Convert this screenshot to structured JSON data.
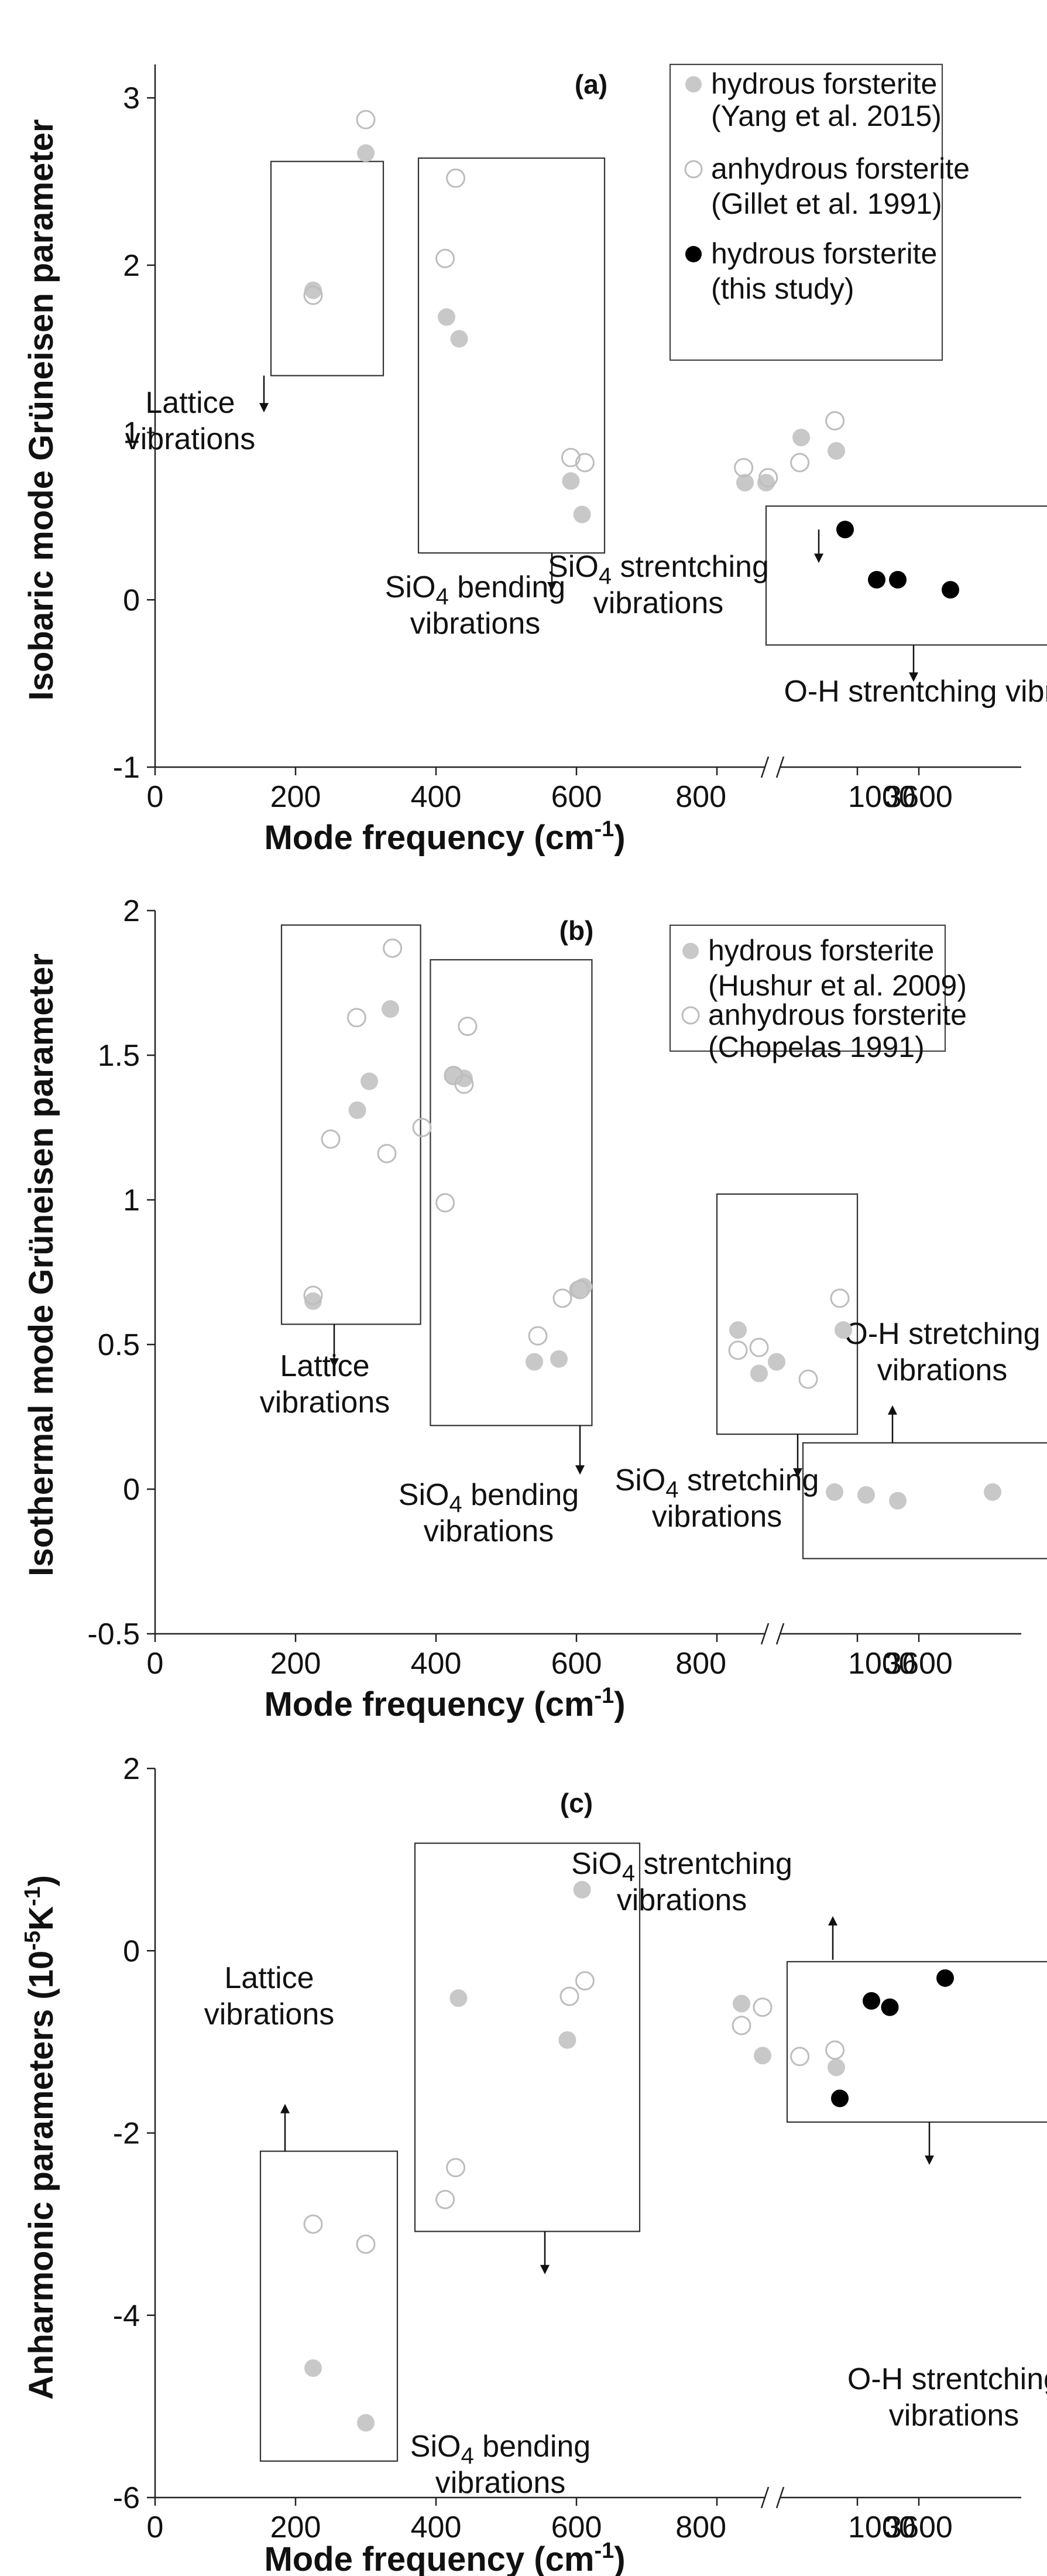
{
  "chart_data": [
    {
      "type": "scatter",
      "panel_label": "(a)",
      "ylabel": "Isobaric mode Grüneisen parameter",
      "xlabel_main": "Mode frequency (cm",
      "xlabel_sup": "-1",
      "xlabel_end": ")",
      "ylim": [
        -1,
        3.2
      ],
      "y_ticks": [
        -1,
        0,
        1,
        2,
        3
      ],
      "x_ticks": [
        {
          "label": "0",
          "value": 0
        },
        {
          "label": "200",
          "value": 200
        },
        {
          "label": "400",
          "value": 400
        },
        {
          "label": "600",
          "value": 600
        },
        {
          "label": "800",
          "value": 800
        },
        {
          "label": "1000",
          "value": 1000
        },
        {
          "label": "3600",
          "value": 3600
        }
      ],
      "series": [
        {
          "name": "hydrous forsterite (Yang et al. 2015)",
          "legend_lines": [
            "hydrous forsterite",
            "(Yang et al. 2015)"
          ],
          "marker": "filled",
          "color": "#c8c8c8",
          "points": [
            [
              225,
              1.85
            ],
            [
              300,
              2.67
            ],
            [
              415,
              1.69
            ],
            [
              433,
              1.56
            ],
            [
              592,
              0.71
            ],
            [
              608,
              0.51
            ],
            [
              840,
              0.7
            ],
            [
              870,
              0.7
            ],
            [
              920,
              0.97
            ],
            [
              970,
              0.89
            ]
          ]
        },
        {
          "name": "anhydrous forsterite (Gillet et al. 1991)",
          "legend_lines": [
            "anhydrous forsterite",
            "(Gillet et al. 1991)"
          ],
          "marker": "open",
          "color": "#bdbdbd",
          "points": [
            [
              225,
              1.82
            ],
            [
              300,
              2.87
            ],
            [
              413,
              2.04
            ],
            [
              428,
              2.52
            ],
            [
              592,
              0.85
            ],
            [
              612,
              0.82
            ],
            [
              838,
              0.79
            ],
            [
              873,
              0.73
            ],
            [
              918,
              0.82
            ],
            [
              968,
              1.07
            ]
          ]
        },
        {
          "name": "hydrous forsterite (this study)",
          "legend_lines": [
            "hydrous forsterite",
            "(this study)"
          ],
          "marker": "filled",
          "color": "#000000",
          "points": [
            [
              3460,
              0.42
            ],
            [
              3520,
              0.12
            ],
            [
              3560,
              0.12
            ],
            [
              3660,
              0.06
            ]
          ]
        }
      ],
      "annotations": [
        {
          "lines": [
            "Lattice",
            "vibrations"
          ]
        },
        {
          "lines": [
            "SiO4 bending",
            "vibrations"
          ]
        },
        {
          "lines": [
            "SiO4 strentching",
            "vibrations"
          ]
        },
        {
          "lines": [
            "O-H strentching vibrations"
          ]
        }
      ]
    },
    {
      "type": "scatter",
      "panel_label": "(b)",
      "ylabel": "Isothermal mode Grüneisen parameter",
      "xlabel_main": "Mode frequency (cm",
      "xlabel_sup": "-1",
      "xlabel_end": ")",
      "ylim": [
        -0.5,
        2
      ],
      "y_ticks": [
        -0.5,
        0,
        0.5,
        1,
        1.5,
        2
      ],
      "y_tick_labels": [
        "-0.5",
        "0",
        "0.5",
        "1",
        "1.5",
        "2"
      ],
      "x_ticks": [
        {
          "label": "0",
          "value": 0
        },
        {
          "label": "200",
          "value": 200
        },
        {
          "label": "400",
          "value": 400
        },
        {
          "label": "600",
          "value": 600
        },
        {
          "label": "800",
          "value": 800
        },
        {
          "label": "1000",
          "value": 1000
        },
        {
          "label": "3600",
          "value": 3600
        }
      ],
      "series": [
        {
          "name": "hydrous forsterite (Hushur et al. 2009)",
          "legend_lines": [
            "hydrous forsterite",
            "(Hushur et al. 2009)"
          ],
          "marker": "filled",
          "color": "#c8c8c8",
          "points": [
            [
              225,
              0.65
            ],
            [
              288,
              1.31
            ],
            [
              305,
              1.41
            ],
            [
              335,
              1.66
            ],
            [
              425,
              1.43
            ],
            [
              440,
              1.42
            ],
            [
              540,
              0.44
            ],
            [
              575,
              0.45
            ],
            [
              602,
              0.69
            ],
            [
              610,
              0.7
            ],
            [
              830,
              0.55
            ],
            [
              860,
              0.4
            ],
            [
              885,
              0.44
            ],
            [
              980,
              0.55
            ],
            [
              3440,
              -0.01
            ],
            [
              3500,
              -0.02
            ],
            [
              3560,
              -0.04
            ],
            [
              3740,
              -0.01
            ]
          ]
        },
        {
          "name": "anhydrous forsterite (Chopelas 1991)",
          "legend_lines": [
            "anhydrous forsterite",
            "(Chopelas 1991)"
          ],
          "marker": "open",
          "color": "#bdbdbd",
          "points": [
            [
              225,
              0.67
            ],
            [
              250,
              1.21
            ],
            [
              287,
              1.63
            ],
            [
              330,
              1.16
            ],
            [
              338,
              1.87
            ],
            [
              380,
              1.25
            ],
            [
              413,
              0.99
            ],
            [
              425,
              1.43
            ],
            [
              440,
              1.4
            ],
            [
              445,
              1.6
            ],
            [
              545,
              0.53
            ],
            [
              580,
              0.66
            ],
            [
              605,
              0.69
            ],
            [
              830,
              0.48
            ],
            [
              860,
              0.49
            ],
            [
              930,
              0.38
            ],
            [
              975,
              0.66
            ]
          ]
        }
      ],
      "annotations": [
        {
          "lines": [
            "Lattice",
            "vibrations"
          ]
        },
        {
          "lines": [
            "SiO4 bending",
            "vibrations"
          ]
        },
        {
          "lines": [
            "SiO4 stretching",
            "vibrations"
          ]
        },
        {
          "lines": [
            "O-H stretching",
            "vibrations"
          ]
        }
      ]
    },
    {
      "type": "scatter",
      "panel_label": "(c)",
      "ylabel_main": "Anharmonic parameters (10",
      "ylabel_sup": "-5",
      "ylabel_end": "K",
      "ylabel_sup2": "-1",
      "ylabel_close": ")",
      "xlabel_main": "Mode frequency (cm",
      "xlabel_sup": "-1",
      "xlabel_end": ")",
      "ylim": [
        -6,
        2
      ],
      "y_ticks": [
        -6,
        -4,
        -2,
        0,
        2
      ],
      "x_ticks": [
        {
          "label": "0",
          "value": 0
        },
        {
          "label": "200",
          "value": 200
        },
        {
          "label": "400",
          "value": 400
        },
        {
          "label": "600",
          "value": 600
        },
        {
          "label": "800",
          "value": 800
        },
        {
          "label": "1000",
          "value": 1000
        },
        {
          "label": "3600",
          "value": 3600
        }
      ],
      "series": [
        {
          "name": "hydrous forsterite (Yang et al. 2015)",
          "marker": "filled",
          "color": "#c8c8c8",
          "points": [
            [
              225,
              -4.58
            ],
            [
              300,
              -5.18
            ],
            [
              432,
              -0.52
            ],
            [
              587,
              -0.98
            ],
            [
              608,
              0.67
            ],
            [
              835,
              -0.58
            ],
            [
              865,
              -1.15
            ],
            [
              970,
              -1.28
            ]
          ]
        },
        {
          "name": "anhydrous forsterite (Gillet et al. 1991)",
          "marker": "open",
          "color": "#bdbdbd",
          "points": [
            [
              225,
              -3.0
            ],
            [
              300,
              -3.22
            ],
            [
              413,
              -2.73
            ],
            [
              428,
              -2.38
            ],
            [
              590,
              -0.5
            ],
            [
              612,
              -0.33
            ],
            [
              835,
              -0.82
            ],
            [
              865,
              -0.62
            ],
            [
              918,
              -1.16
            ],
            [
              968,
              -1.09
            ]
          ]
        },
        {
          "name": "hydrous forsterite (this study)",
          "marker": "filled",
          "color": "#000000",
          "points": [
            [
              3450,
              -1.62
            ],
            [
              3510,
              -0.55
            ],
            [
              3545,
              -0.62
            ],
            [
              3650,
              -0.3
            ]
          ]
        }
      ],
      "annotations": [
        {
          "lines": [
            "Lattice",
            "vibrations"
          ]
        },
        {
          "lines": [
            "SiO4 bending",
            "vibrations"
          ]
        },
        {
          "lines": [
            "SiO4 strentching",
            "vibrations"
          ]
        },
        {
          "lines": [
            "O-H strentching",
            "vibrations"
          ]
        }
      ]
    }
  ]
}
